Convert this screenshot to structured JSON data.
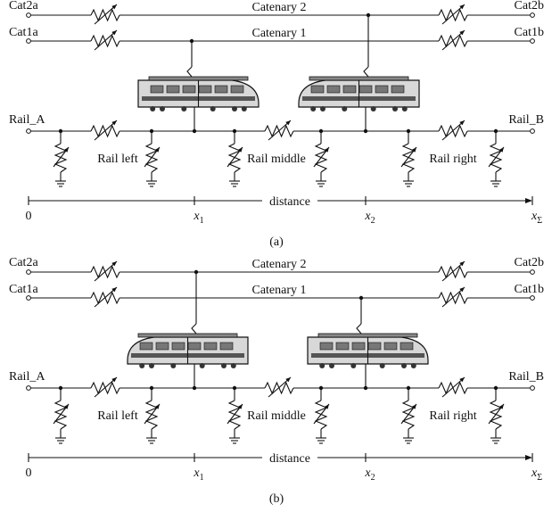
{
  "panels": [
    {
      "caption": "(a)",
      "terminals": {
        "cat2a": "Cat2a",
        "cat2b": "Cat2b",
        "cat1a": "Cat1a",
        "cat1b": "Cat1b",
        "rail_a": "Rail_A",
        "rail_b": "Rail_B"
      },
      "lines": {
        "catenary2": "Catenary 2",
        "catenary1": "Catenary 1"
      },
      "rail_sections": [
        "Rail left",
        "Rail middle",
        "Rail right"
      ],
      "axis": {
        "title": "distance",
        "ticks": [
          {
            "label": "0"
          },
          {
            "label": "x",
            "sub": "1"
          },
          {
            "label": "x",
            "sub": "2"
          },
          {
            "label": "x",
            "sub": "Σ"
          }
        ]
      }
    },
    {
      "caption": "(b)",
      "terminals": {
        "cat2a": "Cat2a",
        "cat2b": "Cat2b",
        "cat1a": "Cat1a",
        "cat1b": "Cat1b",
        "rail_a": "Rail_A",
        "rail_b": "Rail_B"
      },
      "lines": {
        "catenary2": "Catenary 2",
        "catenary1": "Catenary 1"
      },
      "rail_sections": [
        "Rail left",
        "Rail middle",
        "Rail right"
      ],
      "axis": {
        "title": "distance",
        "ticks": [
          {
            "label": "0"
          },
          {
            "label": "x",
            "sub": "1"
          },
          {
            "label": "x",
            "sub": "2"
          },
          {
            "label": "x",
            "sub": "Σ"
          }
        ]
      }
    }
  ]
}
